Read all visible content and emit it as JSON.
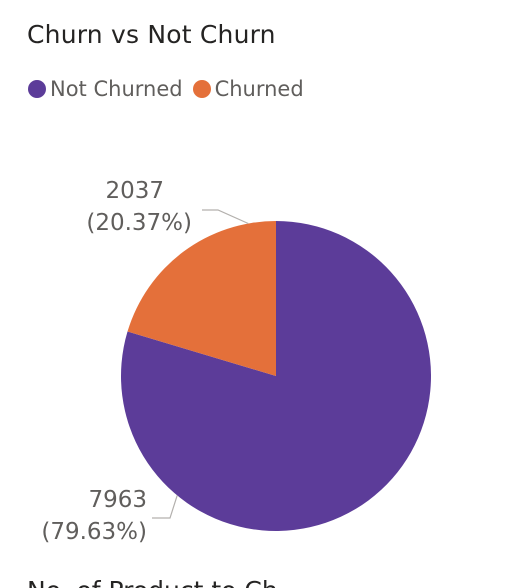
{
  "chart_data": {
    "type": "pie",
    "title": "Churn vs Not Churn",
    "categories": [
      "Not Churned",
      "Churned"
    ],
    "values": [
      7963,
      2037
    ],
    "percent_labels": [
      "(79.63%)",
      "(20.37%)"
    ],
    "value_labels": [
      "7963",
      "2037"
    ],
    "colors": [
      "#5c3c99",
      "#e4703a"
    ],
    "legend_position": "top-left"
  },
  "next_visual": {
    "title_partial": "No. of Product to Ch"
  }
}
